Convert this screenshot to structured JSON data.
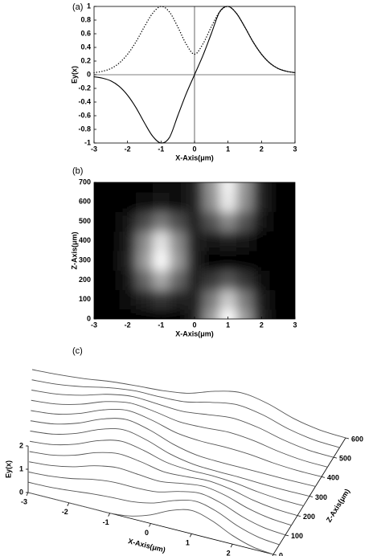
{
  "chart_data": [
    {
      "type": "line",
      "label": "(a)",
      "xlabel": "X-Axis(μm)",
      "ylabel": "Ey(x)",
      "x": [
        -3,
        -2.75,
        -2.5,
        -2.25,
        -2,
        -1.75,
        -1.5,
        -1.25,
        -1,
        -0.75,
        -0.5,
        -0.25,
        0,
        0.25,
        0.5,
        0.75,
        1,
        1.25,
        1.5,
        1.75,
        2,
        2.25,
        2.5,
        2.75,
        3
      ],
      "series": [
        {
          "style": "solid",
          "color": "#000000",
          "values": [
            -0.03,
            -0.05,
            -0.09,
            -0.17,
            -0.3,
            -0.48,
            -0.7,
            -0.9,
            -1,
            -0.92,
            -0.6,
            -0.28,
            0,
            0.28,
            0.6,
            0.92,
            1,
            0.9,
            0.7,
            0.48,
            0.3,
            0.17,
            0.09,
            0.05,
            0.03
          ]
        },
        {
          "style": "dotted",
          "color": "#000000",
          "values": [
            0.03,
            0.05,
            0.09,
            0.17,
            0.3,
            0.48,
            0.7,
            0.9,
            1,
            0.92,
            0.7,
            0.45,
            0.3,
            0.45,
            0.7,
            0.92,
            1,
            0.9,
            0.7,
            0.48,
            0.3,
            0.17,
            0.09,
            0.05,
            0.03
          ]
        }
      ],
      "xlim": [
        -3,
        3
      ],
      "ylim": [
        -1,
        1
      ],
      "xticks": [
        -3,
        -2,
        -1,
        0,
        1,
        2,
        3
      ],
      "yticks": [
        -1,
        -0.8,
        -0.6,
        -0.4,
        -0.2,
        0,
        0.2,
        0.4,
        0.6,
        0.8,
        1
      ]
    },
    {
      "type": "heatmap",
      "label": "(b)",
      "xlabel": "X-Axis(μm)",
      "ylabel": "Z-Axis(μm)",
      "colormap": "gray",
      "x": [
        -3,
        -2.5,
        -2,
        -1.5,
        -1,
        -0.5,
        0,
        0.5,
        1,
        1.5,
        2,
        2.5,
        3
      ],
      "y": [
        0,
        100,
        200,
        300,
        400,
        500,
        600,
        700
      ],
      "values": [
        [
          0,
          0,
          0,
          0,
          0,
          0.01,
          0.14,
          0.61,
          1,
          0.61,
          0.14,
          0.01,
          0
        ],
        [
          0,
          0,
          0.03,
          0.13,
          0.21,
          0.14,
          0.14,
          0.48,
          0.79,
          0.48,
          0.11,
          0.01,
          0
        ],
        [
          0,
          0.01,
          0.09,
          0.4,
          0.66,
          0.4,
          0.14,
          0.22,
          0.34,
          0.21,
          0.05,
          0,
          0
        ],
        [
          0,
          0.01,
          0.14,
          0.6,
          0.98,
          0.6,
          0.14,
          0.02,
          0.02,
          0.01,
          0,
          0,
          0
        ],
        [
          0,
          0.01,
          0.12,
          0.54,
          0.89,
          0.54,
          0.14,
          0.08,
          0.11,
          0.07,
          0.02,
          0,
          0
        ],
        [
          0,
          0,
          0.07,
          0.29,
          0.47,
          0.3,
          0.14,
          0.32,
          0.53,
          0.32,
          0.07,
          0.01,
          0
        ],
        [
          0,
          0,
          0.01,
          0.05,
          0.08,
          0.06,
          0.14,
          0.56,
          0.92,
          0.56,
          0.13,
          0.01,
          0
        ],
        [
          0,
          0,
          0.01,
          0.02,
          0.04,
          0.03,
          0.14,
          0.59,
          0.96,
          0.59,
          0.13,
          0.01,
          0
        ]
      ],
      "xlim": [
        -3,
        3
      ],
      "ylim": [
        0,
        700
      ],
      "xticks": [
        -3,
        -2,
        -1,
        0,
        1,
        2,
        3
      ],
      "yticks": [
        0,
        100,
        200,
        300,
        400,
        500,
        600,
        700
      ]
    },
    {
      "type": "waterfall",
      "label": "(c)",
      "xlabel": "X-Axis(μm)",
      "ylabel": "Ey(x)",
      "zlabel": "Z-Axis(μm)",
      "color": "#555555",
      "x": [
        -3,
        -2.5,
        -2,
        -1.5,
        -1,
        -0.5,
        0,
        0.5,
        1,
        1.5,
        2,
        2.5,
        3
      ],
      "z": [
        0,
        50,
        100,
        150,
        200,
        250,
        300,
        350,
        400,
        450,
        500,
        550,
        600
      ],
      "values": [
        [
          0,
          0,
          0,
          0,
          0,
          0.1,
          0.37,
          0.78,
          1,
          0.78,
          0.37,
          0.1,
          0
        ],
        [
          0,
          0.02,
          0.09,
          0.18,
          0.24,
          0.28,
          0.45,
          0.78,
          0.97,
          0.76,
          0.36,
          0.1,
          0
        ],
        [
          0,
          0.05,
          0.17,
          0.36,
          0.46,
          0.45,
          0.5,
          0.74,
          0.89,
          0.69,
          0.33,
          0.09,
          0
        ],
        [
          0,
          0.07,
          0.24,
          0.51,
          0.66,
          0.59,
          0.52,
          0.66,
          0.76,
          0.59,
          0.28,
          0.08,
          0
        ],
        [
          0,
          0.08,
          0.3,
          0.64,
          0.82,
          0.7,
          0.51,
          0.53,
          0.58,
          0.45,
          0.21,
          0.06,
          0
        ],
        [
          0,
          0.09,
          0.34,
          0.72,
          0.93,
          0.76,
          0.48,
          0.38,
          0.37,
          0.29,
          0.14,
          0.04,
          0
        ],
        [
          0,
          0.1,
          0.37,
          0.77,
          0.99,
          0.78,
          0.42,
          0.21,
          0.14,
          0.11,
          0.05,
          0.01,
          0
        ],
        [
          0,
          0.1,
          0.37,
          0.78,
          1,
          0.79,
          0.41,
          0.17,
          0.1,
          0.07,
          0.04,
          0.01,
          0
        ],
        [
          0,
          0.09,
          0.35,
          0.74,
          0.95,
          0.77,
          0.47,
          0.35,
          0.33,
          0.26,
          0.12,
          0.03,
          0
        ],
        [
          0,
          0.08,
          0.31,
          0.66,
          0.84,
          0.71,
          0.51,
          0.5,
          0.54,
          0.42,
          0.2,
          0.05,
          0
        ],
        [
          0,
          0.07,
          0.26,
          0.54,
          0.69,
          0.61,
          0.53,
          0.63,
          0.72,
          0.56,
          0.27,
          0.07,
          0
        ],
        [
          0,
          0.05,
          0.19,
          0.39,
          0.5,
          0.48,
          0.51,
          0.73,
          0.87,
          0.68,
          0.32,
          0.09,
          0
        ],
        [
          0,
          0.03,
          0.1,
          0.22,
          0.28,
          0.32,
          0.45,
          0.78,
          0.96,
          0.75,
          0.35,
          0.1,
          0
        ]
      ],
      "xlim": [
        -3,
        3
      ],
      "ylim": [
        0,
        2
      ],
      "zlim": [
        0,
        600
      ],
      "xticks": [
        -3,
        -2,
        -1,
        0,
        1,
        2,
        3
      ],
      "yticks": [
        0,
        1,
        2
      ],
      "zticks": [
        0,
        100,
        200,
        300,
        400,
        500,
        600
      ]
    }
  ]
}
